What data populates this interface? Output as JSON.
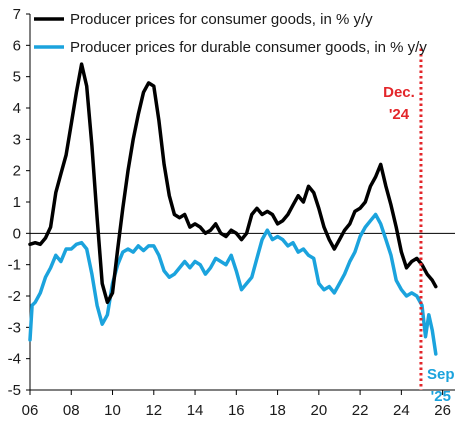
{
  "chart_data": {
    "type": "line",
    "title": "",
    "xlabel": "",
    "ylabel": "",
    "xlim": [
      2006,
      2026.6
    ],
    "ylim": [
      -5,
      7
    ],
    "x_ticks": [
      2006,
      2008,
      2010,
      2012,
      2014,
      2016,
      2018,
      2020,
      2022,
      2024,
      2026
    ],
    "x_tick_labels": [
      "06",
      "08",
      "10",
      "12",
      "14",
      "16",
      "18",
      "20",
      "22",
      "24",
      "26"
    ],
    "y_ticks": [
      -5,
      -4,
      -3,
      -2,
      -1,
      0,
      1,
      2,
      3,
      4,
      5,
      6,
      7
    ],
    "y_tick_labels": [
      "-5",
      "-4",
      "-3",
      "-2",
      "-1",
      "0",
      "1",
      "2",
      "3",
      "4",
      "5",
      "6",
      "7"
    ],
    "grid": false,
    "legend_position": "top-left",
    "annotations": {
      "vertical_line": {
        "x": 2024.95,
        "label_line1": "Dec.",
        "label_line2": "'24",
        "color": "#e3262a"
      },
      "end_label": {
        "label_line1": "Sep",
        "label_line2": "'25",
        "color": "#1ba3dd"
      }
    },
    "series": [
      {
        "name": "Producer prices for consumer goods, in % y/y",
        "color": "#000000",
        "points": [
          [
            2006.0,
            -0.35
          ],
          [
            2006.25,
            -0.3
          ],
          [
            2006.5,
            -0.35
          ],
          [
            2006.75,
            -0.15
          ],
          [
            2007.0,
            0.2
          ],
          [
            2007.25,
            1.3
          ],
          [
            2007.5,
            1.9
          ],
          [
            2007.75,
            2.5
          ],
          [
            2008.0,
            3.5
          ],
          [
            2008.25,
            4.5
          ],
          [
            2008.5,
            5.4
          ],
          [
            2008.75,
            4.7
          ],
          [
            2009.0,
            2.8
          ],
          [
            2009.25,
            0.5
          ],
          [
            2009.5,
            -1.6
          ],
          [
            2009.75,
            -2.2
          ],
          [
            2010.0,
            -1.9
          ],
          [
            2010.25,
            -0.5
          ],
          [
            2010.5,
            0.8
          ],
          [
            2010.75,
            2.0
          ],
          [
            2011.0,
            3.0
          ],
          [
            2011.25,
            3.8
          ],
          [
            2011.5,
            4.5
          ],
          [
            2011.75,
            4.8
          ],
          [
            2012.0,
            4.7
          ],
          [
            2012.25,
            3.6
          ],
          [
            2012.5,
            2.2
          ],
          [
            2012.75,
            1.2
          ],
          [
            2013.0,
            0.6
          ],
          [
            2013.25,
            0.5
          ],
          [
            2013.5,
            0.6
          ],
          [
            2013.75,
            0.2
          ],
          [
            2014.0,
            0.3
          ],
          [
            2014.25,
            0.2
          ],
          [
            2014.5,
            0.0
          ],
          [
            2014.75,
            0.1
          ],
          [
            2015.0,
            0.3
          ],
          [
            2015.25,
            0.0
          ],
          [
            2015.5,
            -0.1
          ],
          [
            2015.75,
            0.1
          ],
          [
            2016.0,
            0.0
          ],
          [
            2016.25,
            -0.2
          ],
          [
            2016.5,
            0.0
          ],
          [
            2016.75,
            0.6
          ],
          [
            2017.0,
            0.8
          ],
          [
            2017.25,
            0.6
          ],
          [
            2017.5,
            0.7
          ],
          [
            2017.75,
            0.6
          ],
          [
            2018.0,
            0.3
          ],
          [
            2018.25,
            0.4
          ],
          [
            2018.5,
            0.6
          ],
          [
            2018.75,
            0.9
          ],
          [
            2019.0,
            1.2
          ],
          [
            2019.25,
            1.0
          ],
          [
            2019.5,
            1.5
          ],
          [
            2019.75,
            1.3
          ],
          [
            2020.0,
            0.8
          ],
          [
            2020.25,
            0.2
          ],
          [
            2020.5,
            -0.2
          ],
          [
            2020.75,
            -0.5
          ],
          [
            2021.0,
            -0.2
          ],
          [
            2021.25,
            0.1
          ],
          [
            2021.5,
            0.3
          ],
          [
            2021.75,
            0.7
          ],
          [
            2022.0,
            0.8
          ],
          [
            2022.25,
            1.0
          ],
          [
            2022.5,
            1.5
          ],
          [
            2022.75,
            1.8
          ],
          [
            2023.0,
            2.2
          ],
          [
            2023.25,
            1.5
          ],
          [
            2023.5,
            0.9
          ],
          [
            2023.75,
            0.2
          ],
          [
            2024.0,
            -0.6
          ],
          [
            2024.25,
            -1.1
          ],
          [
            2024.5,
            -0.9
          ],
          [
            2024.75,
            -0.8
          ],
          [
            2025.0,
            -1.0
          ],
          [
            2025.25,
            -1.3
          ],
          [
            2025.5,
            -1.5
          ],
          [
            2025.67,
            -1.7
          ]
        ]
      },
      {
        "name": "Producer prices for durable consumer goods, in % y/y",
        "color": "#1ba3dd",
        "points": [
          [
            2006.0,
            -3.4
          ],
          [
            2006.1,
            -2.3
          ],
          [
            2006.25,
            -2.2
          ],
          [
            2006.5,
            -1.9
          ],
          [
            2006.75,
            -1.4
          ],
          [
            2007.0,
            -1.1
          ],
          [
            2007.25,
            -0.7
          ],
          [
            2007.5,
            -0.9
          ],
          [
            2007.75,
            -0.5
          ],
          [
            2008.0,
            -0.5
          ],
          [
            2008.25,
            -0.35
          ],
          [
            2008.5,
            -0.3
          ],
          [
            2008.75,
            -0.5
          ],
          [
            2009.0,
            -1.3
          ],
          [
            2009.25,
            -2.3
          ],
          [
            2009.5,
            -2.9
          ],
          [
            2009.75,
            -2.6
          ],
          [
            2010.0,
            -1.6
          ],
          [
            2010.25,
            -1.0
          ],
          [
            2010.5,
            -0.6
          ],
          [
            2010.75,
            -0.5
          ],
          [
            2011.0,
            -0.6
          ],
          [
            2011.25,
            -0.4
          ],
          [
            2011.5,
            -0.55
          ],
          [
            2011.75,
            -0.4
          ],
          [
            2012.0,
            -0.4
          ],
          [
            2012.25,
            -0.7
          ],
          [
            2012.5,
            -1.2
          ],
          [
            2012.75,
            -1.4
          ],
          [
            2013.0,
            -1.3
          ],
          [
            2013.25,
            -1.1
          ],
          [
            2013.5,
            -0.9
          ],
          [
            2013.75,
            -1.1
          ],
          [
            2014.0,
            -0.9
          ],
          [
            2014.25,
            -1.0
          ],
          [
            2014.5,
            -1.3
          ],
          [
            2014.75,
            -1.1
          ],
          [
            2015.0,
            -0.8
          ],
          [
            2015.25,
            -0.9
          ],
          [
            2015.5,
            -1.0
          ],
          [
            2015.75,
            -0.7
          ],
          [
            2016.0,
            -1.2
          ],
          [
            2016.25,
            -1.8
          ],
          [
            2016.5,
            -1.6
          ],
          [
            2016.75,
            -1.4
          ],
          [
            2017.0,
            -0.8
          ],
          [
            2017.25,
            -0.2
          ],
          [
            2017.5,
            0.1
          ],
          [
            2017.75,
            -0.2
          ],
          [
            2018.0,
            -0.1
          ],
          [
            2018.25,
            -0.2
          ],
          [
            2018.5,
            -0.4
          ],
          [
            2018.75,
            -0.3
          ],
          [
            2019.0,
            -0.6
          ],
          [
            2019.25,
            -0.5
          ],
          [
            2019.5,
            -0.7
          ],
          [
            2019.75,
            -0.8
          ],
          [
            2020.0,
            -1.6
          ],
          [
            2020.25,
            -1.8
          ],
          [
            2020.5,
            -1.7
          ],
          [
            2020.75,
            -1.9
          ],
          [
            2021.0,
            -1.6
          ],
          [
            2021.25,
            -1.3
          ],
          [
            2021.5,
            -0.9
          ],
          [
            2021.75,
            -0.6
          ],
          [
            2022.0,
            -0.1
          ],
          [
            2022.25,
            0.2
          ],
          [
            2022.5,
            0.4
          ],
          [
            2022.75,
            0.6
          ],
          [
            2023.0,
            0.3
          ],
          [
            2023.25,
            -0.2
          ],
          [
            2023.5,
            -0.7
          ],
          [
            2023.75,
            -1.5
          ],
          [
            2024.0,
            -1.8
          ],
          [
            2024.25,
            -2.0
          ],
          [
            2024.5,
            -1.9
          ],
          [
            2024.75,
            -2.0
          ],
          [
            2025.0,
            -2.3
          ],
          [
            2025.17,
            -3.3
          ],
          [
            2025.33,
            -2.6
          ],
          [
            2025.5,
            -3.1
          ],
          [
            2025.67,
            -3.85
          ]
        ]
      }
    ]
  }
}
